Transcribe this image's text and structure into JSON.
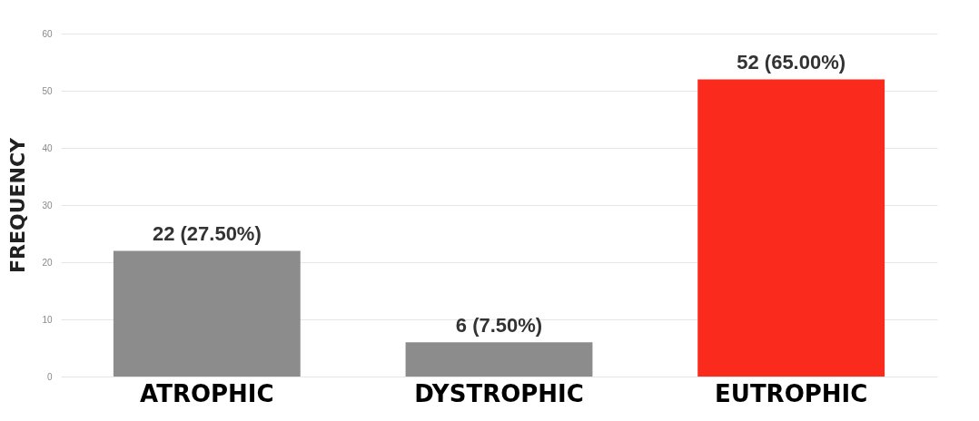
{
  "chart_data": {
    "type": "bar",
    "ylabel": "FREQUENCY",
    "categories": [
      "ATROPHIC",
      "DYSTROPHIC",
      "EUTROPHIC"
    ],
    "values": [
      22,
      6,
      52
    ],
    "colors": [
      "#8c8c8c",
      "#8c8c8c",
      "#fa2a1c"
    ],
    "value_labels": [
      "22 (27.50%)",
      "6 (7.50%)",
      "52 (65.00%)"
    ],
    "ylim": [
      0,
      60
    ],
    "yticks": [
      0,
      10,
      20,
      30,
      40,
      50,
      60
    ],
    "grid": "y"
  }
}
